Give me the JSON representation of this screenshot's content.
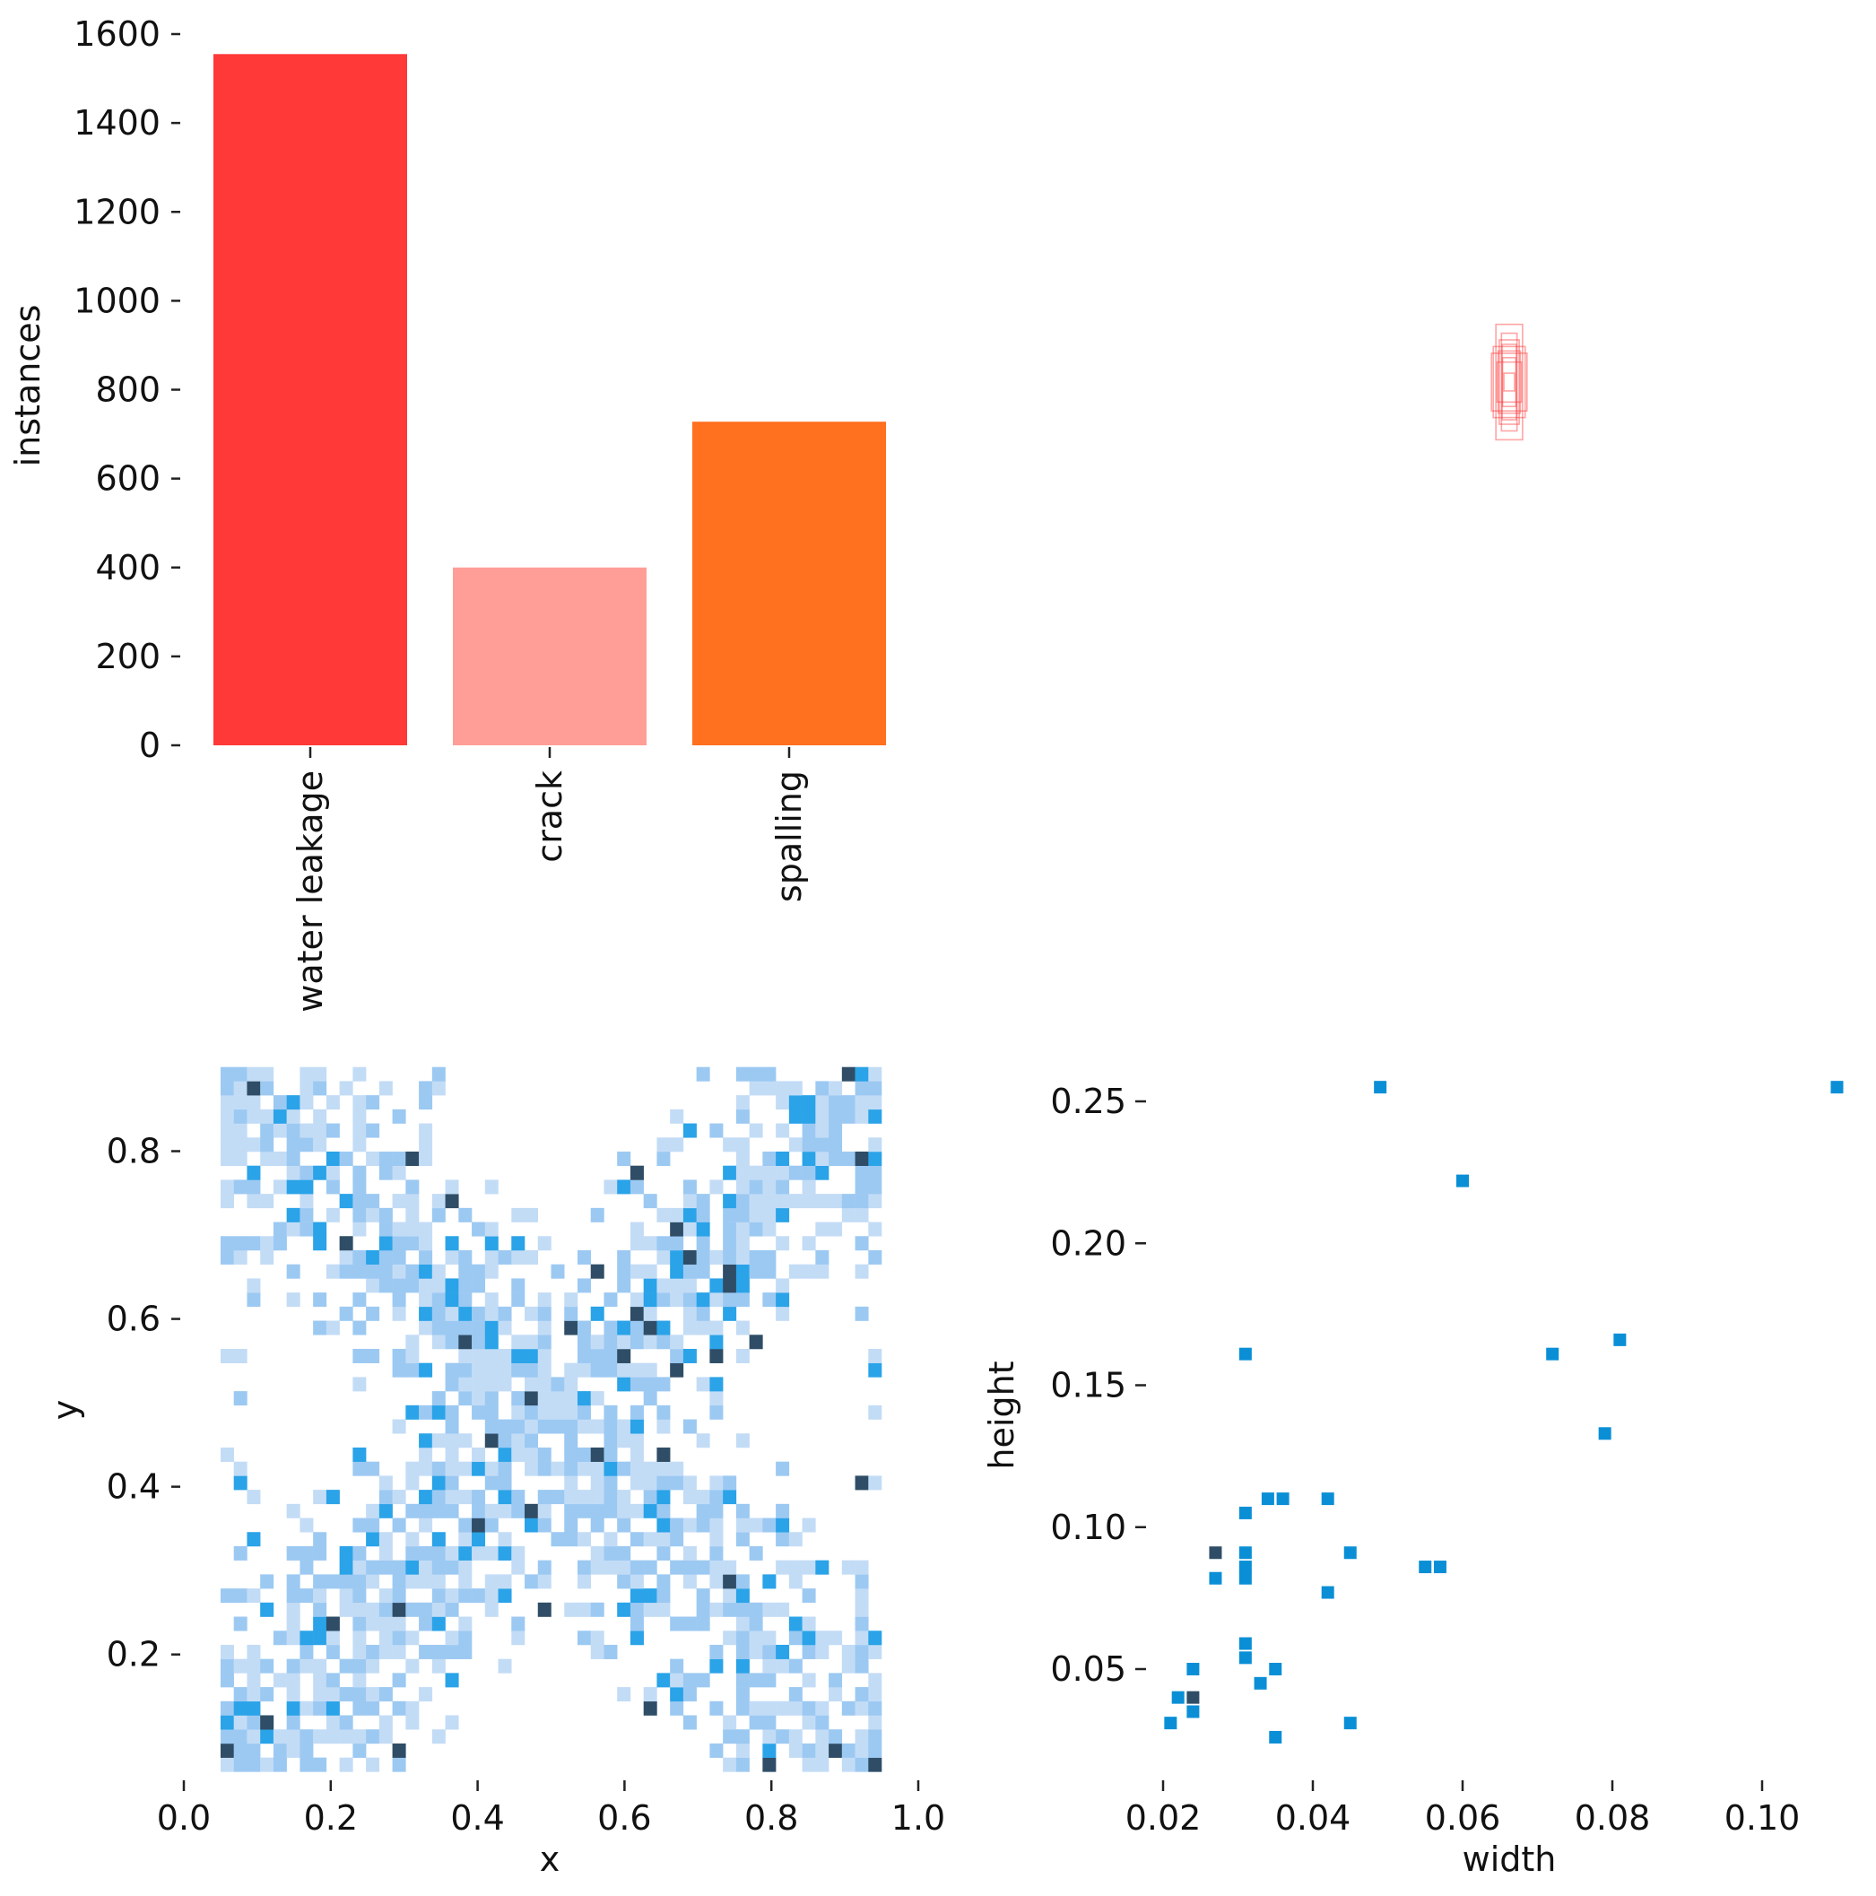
{
  "chart_data": [
    {
      "type": "bar",
      "categories": [
        "water leakage",
        "crack",
        "spalling"
      ],
      "values": [
        1555,
        400,
        728
      ],
      "colors": [
        "#ff3838",
        "#ff9d97",
        "#ff701f"
      ],
      "ylabel": "instances",
      "ylim": [
        0,
        1600
      ],
      "yticks": [
        0,
        200,
        400,
        600,
        800,
        1000,
        1200,
        1400,
        1600
      ],
      "ytick_labels": [
        "0",
        "200",
        "400",
        "600",
        "800",
        "1000",
        "1200",
        "1400",
        "1600"
      ]
    },
    {
      "type": "scatter",
      "description_of_marks": "overlaid box outlines centred at (0.5, 0.5)",
      "color": "#ff3838",
      "boxes": [
        {
          "w": 0.06,
          "h": 0.26
        },
        {
          "w": 0.045,
          "h": 0.19
        },
        {
          "w": 0.05,
          "h": 0.14
        },
        {
          "w": 0.032,
          "h": 0.17
        },
        {
          "w": 0.08,
          "h": 0.13
        },
        {
          "w": 0.03,
          "h": 0.11
        },
        {
          "w": 0.055,
          "h": 0.09
        },
        {
          "w": 0.035,
          "h": 0.22
        },
        {
          "w": 0.072,
          "h": 0.16
        },
        {
          "w": 0.024,
          "h": 0.04
        }
      ]
    },
    {
      "type": "heatmap",
      "xlabel": "x",
      "ylabel": "y",
      "xlim": [
        0.0,
        1.0
      ],
      "ylim": [
        0.05,
        0.9
      ],
      "xticks": [
        0.0,
        0.2,
        0.4,
        0.6,
        0.8,
        1.0
      ],
      "xtick_labels": [
        "0.0",
        "0.2",
        "0.4",
        "0.6",
        "0.8",
        "1.0"
      ],
      "yticks": [
        0.2,
        0.4,
        0.6,
        0.8
      ],
      "ytick_labels": [
        "0.2",
        "0.4",
        "0.6",
        "0.8"
      ],
      "bins": 50,
      "density_colors": [
        "#c3dcf6",
        "#9cc9f2",
        "#2aa3e8",
        "#2f4d66"
      ]
    },
    {
      "type": "heatmap",
      "xlabel": "width",
      "ylabel": "height",
      "xlim": [
        0.0,
        0.115
      ],
      "ylim": [
        0.022,
        0.262
      ],
      "xticks": [
        0.02,
        0.04,
        0.06,
        0.08,
        0.1
      ],
      "xtick_labels": [
        "0.02",
        "0.04",
        "0.06",
        "0.08",
        "0.10"
      ],
      "yticks": [
        0.05,
        0.1,
        0.15,
        0.2,
        0.25
      ],
      "ytick_labels": [
        "0.05",
        "0.10",
        "0.15",
        "0.20",
        "0.25"
      ],
      "points": [
        {
          "x": 0.049,
          "y": 0.255,
          "v": 2
        },
        {
          "x": 0.11,
          "y": 0.255,
          "v": 2
        },
        {
          "x": 0.06,
          "y": 0.222,
          "v": 2
        },
        {
          "x": 0.031,
          "y": 0.161,
          "v": 2
        },
        {
          "x": 0.072,
          "y": 0.161,
          "v": 2
        },
        {
          "x": 0.081,
          "y": 0.166,
          "v": 2
        },
        {
          "x": 0.079,
          "y": 0.133,
          "v": 2
        },
        {
          "x": 0.034,
          "y": 0.11,
          "v": 2
        },
        {
          "x": 0.036,
          "y": 0.11,
          "v": 2
        },
        {
          "x": 0.042,
          "y": 0.11,
          "v": 2
        },
        {
          "x": 0.031,
          "y": 0.105,
          "v": 2
        },
        {
          "x": 0.045,
          "y": 0.091,
          "v": 2
        },
        {
          "x": 0.027,
          "y": 0.091,
          "v": 3
        },
        {
          "x": 0.031,
          "y": 0.091,
          "v": 2
        },
        {
          "x": 0.031,
          "y": 0.086,
          "v": 2
        },
        {
          "x": 0.055,
          "y": 0.086,
          "v": 2
        },
        {
          "x": 0.057,
          "y": 0.086,
          "v": 2
        },
        {
          "x": 0.027,
          "y": 0.082,
          "v": 2
        },
        {
          "x": 0.031,
          "y": 0.082,
          "v": 2
        },
        {
          "x": 0.042,
          "y": 0.077,
          "v": 2
        },
        {
          "x": 0.031,
          "y": 0.059,
          "v": 2
        },
        {
          "x": 0.031,
          "y": 0.054,
          "v": 2
        },
        {
          "x": 0.024,
          "y": 0.05,
          "v": 2
        },
        {
          "x": 0.035,
          "y": 0.05,
          "v": 2
        },
        {
          "x": 0.033,
          "y": 0.045,
          "v": 2
        },
        {
          "x": 0.022,
          "y": 0.04,
          "v": 2
        },
        {
          "x": 0.024,
          "y": 0.04,
          "v": 3
        },
        {
          "x": 0.024,
          "y": 0.035,
          "v": 2
        },
        {
          "x": 0.021,
          "y": 0.031,
          "v": 2
        },
        {
          "x": 0.045,
          "y": 0.031,
          "v": 2
        },
        {
          "x": 0.035,
          "y": 0.026,
          "v": 2
        }
      ]
    }
  ]
}
